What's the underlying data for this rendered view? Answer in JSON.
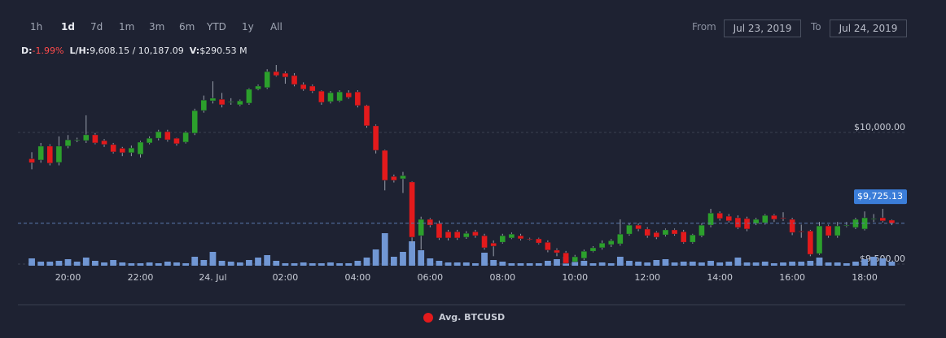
{
  "controls": {
    "ranges": [
      "1h",
      "1d",
      "7d",
      "1m",
      "3m",
      "6m",
      "YTD",
      "1y",
      "All"
    ],
    "active_range": 1,
    "from_label": "From",
    "from_value": "Jul 23, 2019",
    "to_label": "To",
    "to_value": "Jul 24, 2019"
  },
  "stats": {
    "change_label": "D:",
    "change_value": "-1.99%",
    "range_label": "L/H:",
    "range_value": "9,608.15 / 10,187.09",
    "volume_label": "V:",
    "volume_value": "$290.53 M"
  },
  "chart_data": {
    "type": "candlestick",
    "series_name": "Avg. BTCUSD",
    "series_color": "#e31a1c",
    "up_color": "#2ca02c",
    "down_color": "#e31a1c",
    "volume_color": "#7197d4",
    "categories": [
      null,
      null,
      null,
      null,
      "20:00",
      null,
      null,
      null,
      null,
      null,
      null,
      null,
      "22:00",
      null,
      null,
      null,
      null,
      null,
      null,
      null,
      "24. Jul",
      null,
      null,
      null,
      null,
      null,
      null,
      null,
      "02:00",
      null,
      null,
      null,
      null,
      null,
      null,
      null,
      "04:00",
      null,
      null,
      null,
      null,
      null,
      null,
      null,
      "06:00",
      null,
      null,
      null,
      null,
      null,
      null,
      null,
      "08:00",
      null,
      null,
      null,
      null,
      null,
      null,
      null,
      "10:00",
      null,
      null,
      null,
      null,
      null,
      null,
      null,
      "12:00",
      null,
      null,
      null,
      null,
      null,
      null,
      null,
      "14:00",
      null,
      null,
      null,
      null,
      null,
      null,
      null,
      "16:00",
      null,
      null,
      null,
      null,
      null,
      null,
      null,
      "18:00",
      null,
      null,
      null
    ],
    "open": [
      9900,
      9895,
      9948,
      9886,
      9948,
      9970,
      9969,
      9991,
      9969,
      9954,
      9940,
      9923,
      9917,
      9960,
      9978,
      10003,
      9978,
      9963,
      9997,
      10083,
      10120,
      10126,
      10114,
      10105,
      10111,
      10164,
      10170,
      10231,
      10225,
      10216,
      10182,
      10176,
      10157,
      10117,
      10120,
      10151,
      10154,
      10102,
      10025,
      9932,
      9833,
      9824,
      9812,
      9608,
      9670,
      9654,
      9623,
      9623,
      9602,
      9623,
      9608,
      9580,
      9583,
      9599,
      9608,
      9596,
      9596,
      9583,
      9553,
      9543,
      9509,
      9522,
      9549,
      9562,
      9574,
      9577,
      9614,
      9648,
      9633,
      9620,
      9611,
      9630,
      9623,
      9583,
      9608,
      9648,
      9694,
      9682,
      9676,
      9673,
      9654,
      9657,
      9685,
      9676,
      9670,
      9625,
      9626,
      9540,
      9645,
      9608,
      9645,
      9639,
      9633,
      9670,
      9676,
      9667
    ],
    "high": [
      9925,
      9960,
      9955,
      9985,
      9990,
      9980,
      10065,
      9998,
      9975,
      9960,
      9945,
      9950,
      9968,
      9985,
      10010,
      10010,
      9980,
      10005,
      10090,
      10140,
      10194,
      10150,
      10130,
      10125,
      10168,
      10182,
      10240,
      10256,
      10232,
      10225,
      10190,
      10182,
      10160,
      10157,
      10160,
      10160,
      10160,
      10105,
      10030,
      9935,
      9840,
      9850,
      9815,
      9680,
      9675,
      9665,
      9630,
      9630,
      9625,
      9630,
      9615,
      9590,
      9615,
      9620,
      9615,
      9600,
      9600,
      9590,
      9560,
      9550,
      9535,
      9555,
      9568,
      9590,
      9595,
      9670,
      9655,
      9655,
      9640,
      9625,
      9635,
      9635,
      9630,
      9615,
      9655,
      9710,
      9700,
      9690,
      9685,
      9680,
      9676,
      9690,
      9690,
      9697,
      9676,
      9650,
      9630,
      9660,
      9650,
      9660,
      9660,
      9676,
      9700,
      9690,
      9710,
      9670
    ],
    "low": [
      9860,
      9885,
      9875,
      9875,
      9940,
      9963,
      9960,
      9955,
      9945,
      9920,
      9910,
      9910,
      9905,
      9955,
      9970,
      9965,
      9950,
      9958,
      9990,
      10075,
      10110,
      10095,
      10105,
      10100,
      10105,
      10160,
      10165,
      10212,
      10185,
      10175,
      10158,
      10150,
      10105,
      10110,
      10115,
      10128,
      10095,
      10018,
      9920,
      9780,
      9810,
      9770,
      9580,
      9555,
      9640,
      9592,
      9590,
      9592,
      9596,
      9600,
      9555,
      9530,
      9578,
      9595,
      9590,
      9590,
      9575,
      9545,
      9530,
      9498,
      9503,
      9515,
      9545,
      9555,
      9565,
      9570,
      9608,
      9625,
      9600,
      9595,
      9605,
      9608,
      9578,
      9578,
      9602,
      9640,
      9665,
      9658,
      9633,
      9625,
      9648,
      9650,
      9660,
      9664,
      9610,
      9600,
      9530,
      9535,
      9600,
      9600,
      9640,
      9633,
      9628,
      9660,
      9658,
      9648
    ],
    "close": [
      9885,
      9948,
      9883,
      9948,
      9972,
      9973,
      9991,
      9960,
      9954,
      9926,
      9923,
      9941,
      9963,
      9978,
      10003,
      9972,
      9957,
      10000,
      10083,
      10123,
      10130,
      10105,
      10117,
      10120,
      10164,
      10176,
      10231,
      10216,
      10210,
      10182,
      10164,
      10157,
      10114,
      10151,
      10154,
      10133,
      10102,
      10025,
      9932,
      9818,
      9818,
      9836,
      9602,
      9670,
      9648,
      9599,
      9599,
      9599,
      9617,
      9608,
      9562,
      9568,
      9608,
      9614,
      9596,
      9595,
      9580,
      9553,
      9543,
      9503,
      9528,
      9549,
      9562,
      9580,
      9589,
      9614,
      9648,
      9633,
      9608,
      9602,
      9630,
      9614,
      9583,
      9611,
      9648,
      9694,
      9673,
      9664,
      9639,
      9633,
      9670,
      9685,
      9670,
      9673,
      9620,
      9623,
      9537,
      9645,
      9608,
      9645,
      9648,
      9670,
      9676,
      9673,
      9664,
      9655
    ],
    "volume": [
      9,
      5,
      5,
      6,
      8,
      5,
      10,
      6,
      4,
      7,
      4,
      3,
      3,
      4,
      3,
      5,
      4,
      3,
      11,
      7,
      17,
      6,
      5,
      4,
      7,
      10,
      13,
      6,
      3,
      3,
      4,
      3,
      3,
      4,
      3,
      3,
      6,
      10,
      20,
      40,
      11,
      17,
      30,
      19,
      9,
      6,
      4,
      4,
      4,
      3,
      16,
      7,
      5,
      3,
      3,
      3,
      3,
      6,
      8,
      11,
      5,
      6,
      3,
      4,
      3,
      11,
      6,
      5,
      4,
      7,
      8,
      4,
      5,
      5,
      4,
      6,
      4,
      5,
      10,
      4,
      4,
      5,
      3,
      4,
      5,
      5,
      6,
      10,
      4,
      4,
      3,
      5,
      8,
      11,
      9,
      5
    ],
    "ylim": [
      9494,
      10256
    ],
    "yticks": [
      {
        "value": 9500,
        "label": "$9,500.00"
      },
      {
        "value": 10000,
        "label": "$10,000.00"
      }
    ],
    "last_price": {
      "value": 9725.13,
      "label": "$9,725.13"
    },
    "grid": true
  }
}
